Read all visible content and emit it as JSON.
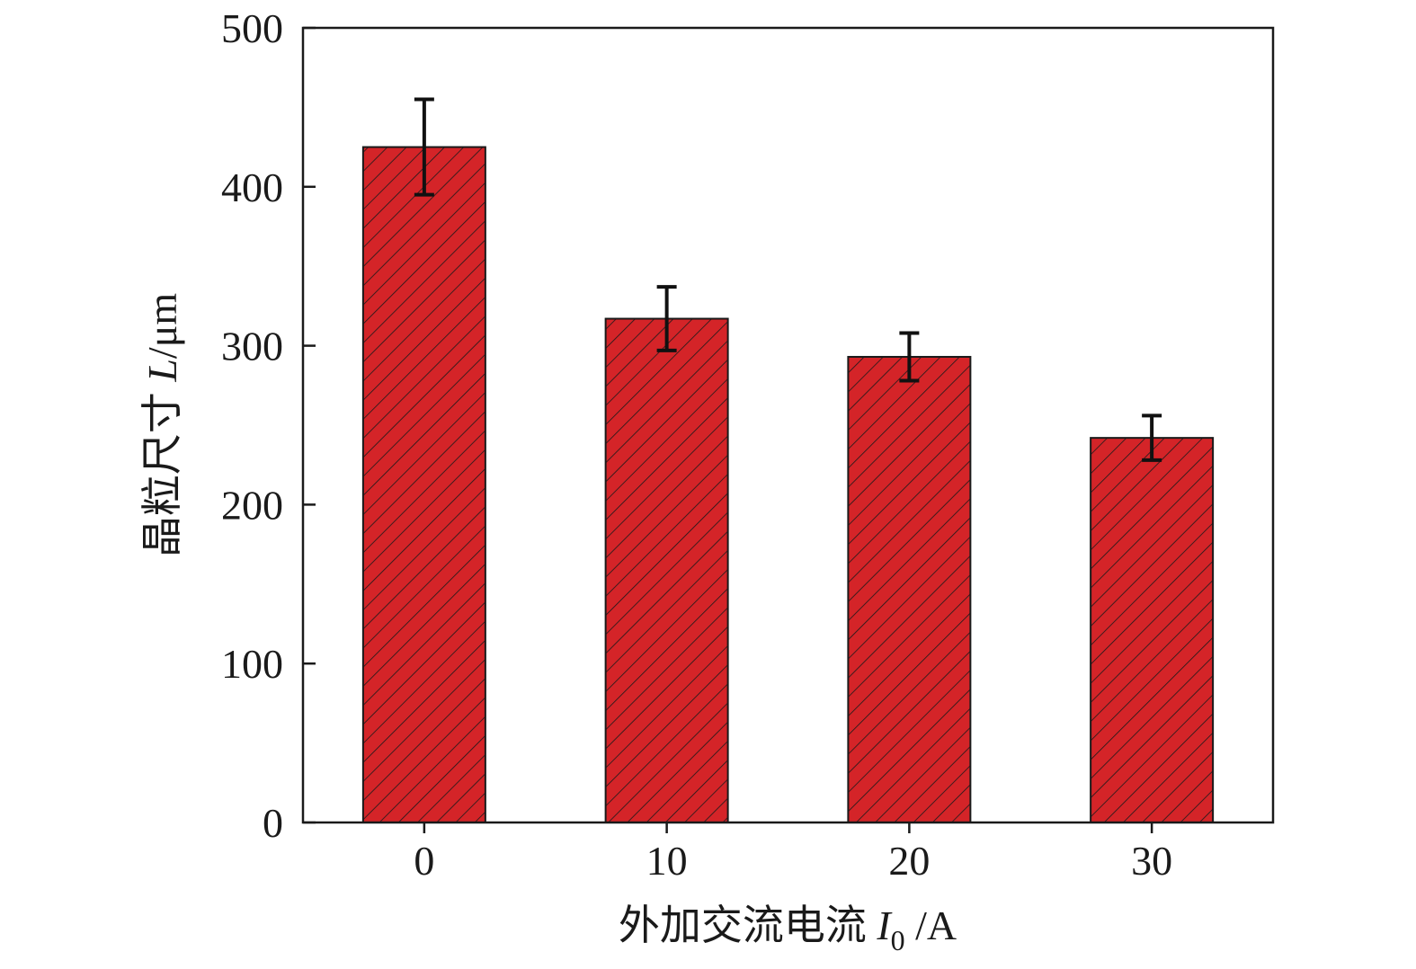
{
  "chart_data": {
    "type": "bar",
    "categories": [
      "0",
      "10",
      "20",
      "30"
    ],
    "values": [
      425,
      317,
      293,
      242
    ],
    "errors": [
      30,
      20,
      15,
      14
    ],
    "xlabel": {
      "main": "外加交流电流 ",
      "var": "I",
      "sub": "0",
      "unit": " /A"
    },
    "ylabel": {
      "main": "晶粒尺寸 ",
      "var": "L",
      "unit": "/μm"
    },
    "ylim": [
      0,
      500
    ],
    "yticks": [
      0,
      100,
      200,
      300,
      400,
      500
    ],
    "grid": false,
    "legend": "none",
    "bar_color": "#d42428",
    "bar_hatch": "diagonal",
    "edge_color": "#1a1a1a",
    "error_color": "#111111"
  }
}
